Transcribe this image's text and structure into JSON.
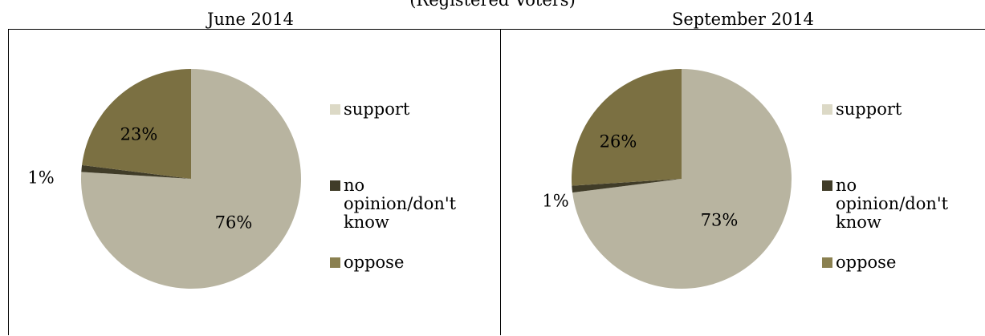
{
  "header": {
    "cut_title": "(Registered Voters)"
  },
  "colors": {
    "support": "#b8b4a0",
    "no_opinion": "#403c28",
    "oppose": "#7b7042"
  },
  "chart_data": [
    {
      "type": "pie",
      "title": "June 2014",
      "categories": [
        "support",
        "no opinion/don't know",
        "oppose"
      ],
      "values": [
        76,
        1,
        23
      ],
      "labels": [
        "76%",
        "1%",
        "23%"
      ],
      "legend": "right"
    },
    {
      "type": "pie",
      "title": "September 2014",
      "categories": [
        "support",
        "no opinion/don't know",
        "oppose"
      ],
      "values": [
        73,
        1,
        26
      ],
      "labels": [
        "73%",
        "1%",
        "26%"
      ],
      "legend": "right"
    }
  ]
}
